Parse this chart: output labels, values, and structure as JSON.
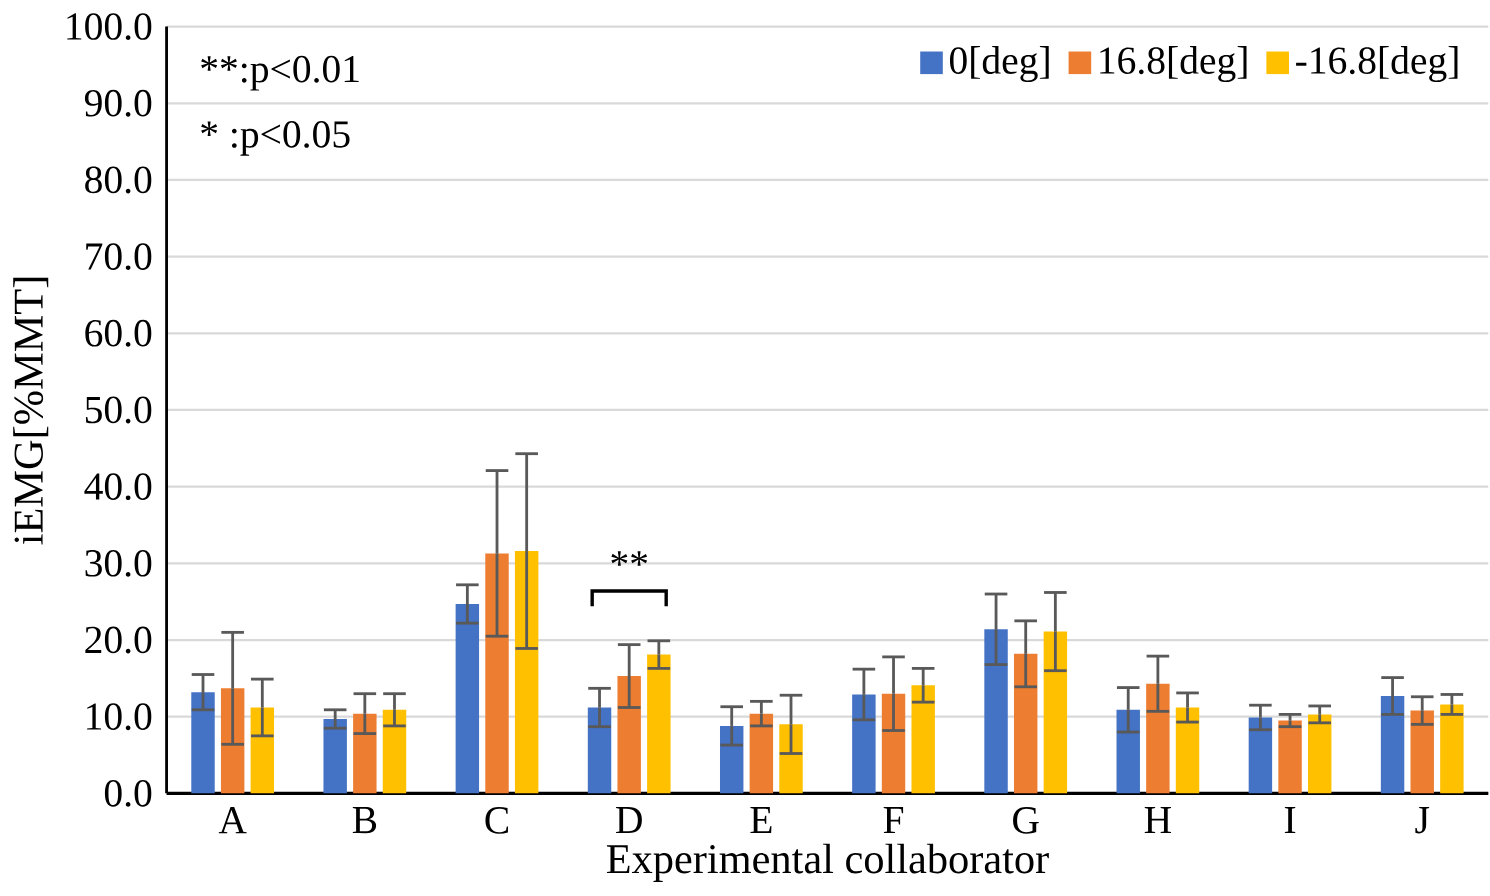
{
  "chart_data": {
    "type": "bar",
    "xlabel": "Experimental collaborator",
    "ylabel": "iEMG[%MMT]",
    "categories": [
      "A",
      "B",
      "C",
      "D",
      "E",
      "F",
      "G",
      "H",
      "I",
      "J"
    ],
    "series": [
      {
        "name": "0[deg]",
        "color": "#4472c4",
        "values": [
          13.2,
          9.7,
          24.7,
          11.2,
          8.8,
          12.9,
          21.4,
          10.9,
          9.9,
          12.7
        ],
        "errors": [
          2.3,
          1.2,
          2.5,
          2.5,
          2.5,
          3.3,
          4.6,
          2.9,
          1.6,
          2.4
        ]
      },
      {
        "name": "16.8[deg]",
        "color": "#ed7d31",
        "values": [
          13.7,
          10.4,
          31.3,
          15.3,
          10.4,
          13.0,
          18.2,
          14.3,
          9.5,
          10.8
        ],
        "errors": [
          7.3,
          2.6,
          10.8,
          4.1,
          1.6,
          4.8,
          4.3,
          3.6,
          0.8,
          1.8
        ]
      },
      {
        "name": "-16.8[deg]",
        "color": "#ffc000",
        "values": [
          11.2,
          10.9,
          31.6,
          18.1,
          9.0,
          14.1,
          21.1,
          11.2,
          10.3,
          11.6
        ],
        "errors": [
          3.7,
          2.1,
          12.7,
          1.8,
          3.8,
          2.2,
          5.1,
          1.9,
          1.1,
          1.3
        ]
      }
    ],
    "ylim": [
      0,
      100
    ],
    "yticks": [
      {
        "value": 0,
        "label": "0.0"
      },
      {
        "value": 10,
        "label": "10.0"
      },
      {
        "value": 20,
        "label": "20.0"
      },
      {
        "value": 30,
        "label": "30.0"
      },
      {
        "value": 40,
        "label": "40.0"
      },
      {
        "value": 50,
        "label": "50.0"
      },
      {
        "value": 60,
        "label": "60.0"
      },
      {
        "value": 70,
        "label": "70.0"
      },
      {
        "value": 80,
        "label": "80.0"
      },
      {
        "value": 90,
        "label": "90.0"
      },
      {
        "value": 100,
        "label": "100.0"
      }
    ],
    "grid": "y",
    "legend": "top right",
    "annotations": [
      "**:p<0.01",
      "* :p<0.05",
      "**"
    ]
  }
}
